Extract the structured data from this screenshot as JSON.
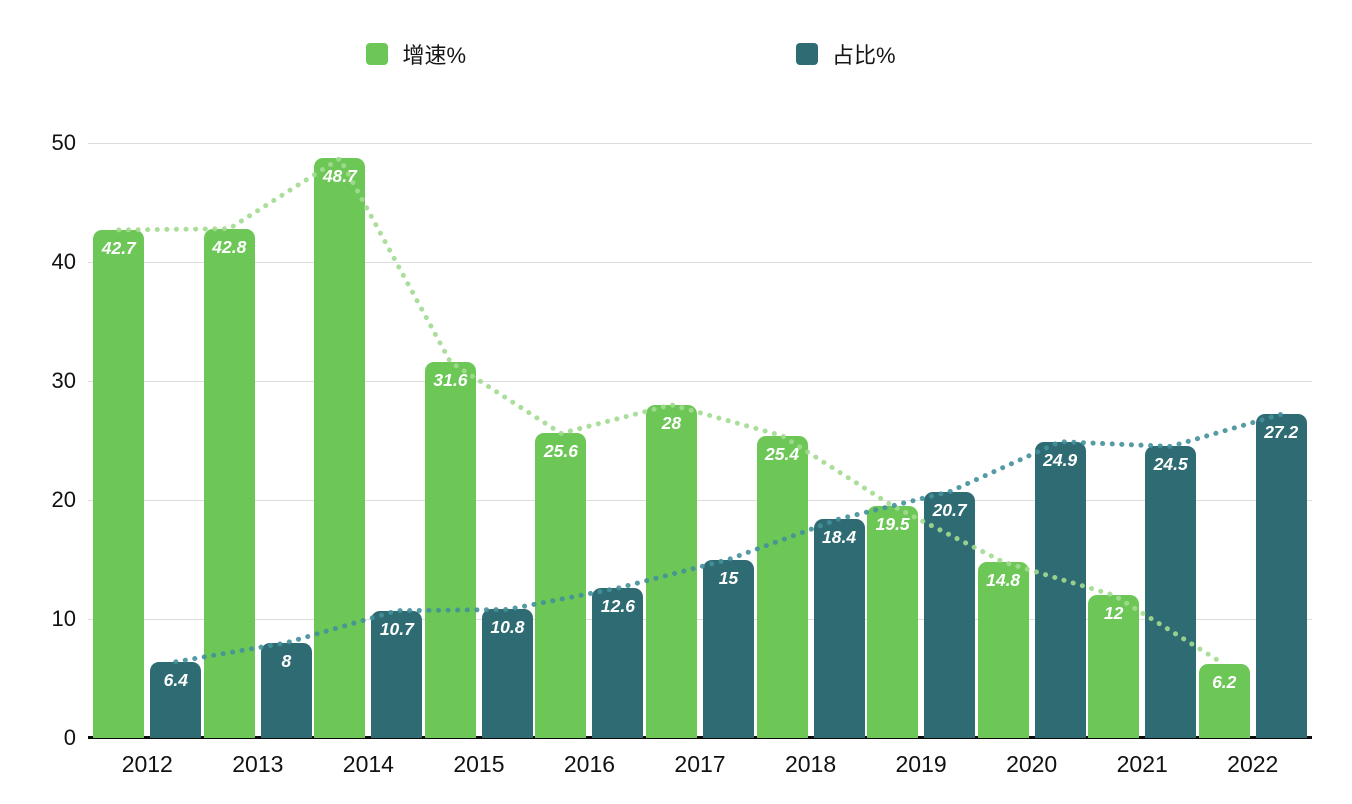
{
  "legend": {
    "items": [
      {
        "label": "增速%"
      },
      {
        "label": "占比%"
      }
    ]
  },
  "chart_data": {
    "type": "bar",
    "title": "",
    "categories": [
      "2012",
      "2013",
      "2014",
      "2015",
      "2016",
      "2017",
      "2018",
      "2019",
      "2020",
      "2021",
      "2022"
    ],
    "series": [
      {
        "key": "growth",
        "name": "增速%",
        "color": "#6cc757",
        "dot_color": "#a3da90",
        "values": [
          42.7,
          42.8,
          48.7,
          31.6,
          25.6,
          28,
          25.4,
          19.5,
          14.8,
          12,
          6.2
        ]
      },
      {
        "key": "share",
        "name": "占比%",
        "color": "#2e6b73",
        "dot_color": "#43909b",
        "values": [
          6.4,
          8,
          10.7,
          10.8,
          12.6,
          15,
          18.4,
          20.7,
          24.9,
          24.5,
          27.2
        ]
      }
    ],
    "xlabel": "",
    "ylabel": "",
    "ylim": [
      0,
      50
    ],
    "yticks": [
      0,
      10,
      20,
      30,
      40,
      50
    ],
    "grid": true,
    "legend_position": "top",
    "trend_lines": "dotted polylines following each series' bar tops"
  }
}
